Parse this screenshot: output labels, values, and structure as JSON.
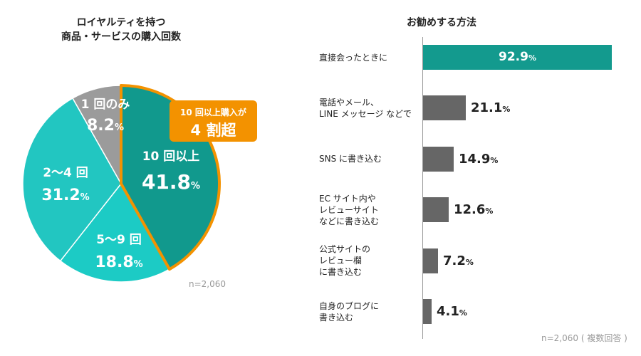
{
  "charts": {
    "pie": {
      "title_line1": "ロイヤルティを持つ",
      "title_line2": "商品・サービスの購入回数",
      "note": "n=2,060",
      "callout_line1": "10 回以上購入が",
      "callout_line2": "4 割超",
      "unit": "%",
      "colors": {
        "slice_1": "#9b9b9b",
        "slice_2_4": "#22c6c1",
        "slice_5_9": "#1ccbc5",
        "slice_10": "#11998d",
        "highlight": "#f39200"
      }
    },
    "bar": {
      "title": "お勧めする方法",
      "note": "n=2,060 ( 複数回答 )",
      "unit": "%",
      "colors": {
        "top": "#139a8e",
        "other": "#666666"
      }
    }
  },
  "chart_data": [
    {
      "type": "pie",
      "title": "ロイヤルティを持つ 商品・サービスの購入回数",
      "categories": [
        "10 回以上",
        "5〜9 回",
        "2〜4 回",
        "1 回のみ"
      ],
      "values": [
        41.8,
        18.8,
        31.2,
        8.2
      ],
      "value_labels": [
        "41.8",
        "18.8",
        "31.2",
        "8.2"
      ],
      "unit": "%"
    },
    {
      "type": "bar",
      "orientation": "horizontal",
      "title": "お勧めする方法",
      "categories": [
        [
          "直接会ったときに"
        ],
        [
          "電話やメール、",
          "LINE メッセージ などで"
        ],
        [
          "SNS に書き込む"
        ],
        [
          "EC サイト内や",
          "レビューサイト",
          "などに書き込む"
        ],
        [
          "公式サイトの",
          "レビュー欄",
          "に書き込む"
        ],
        [
          "自身のブログに",
          "書き込む"
        ]
      ],
      "values": [
        92.9,
        21.1,
        14.9,
        12.6,
        7.2,
        4.1
      ],
      "value_labels": [
        "92.9",
        "21.1",
        "14.9",
        "12.6",
        "7.2",
        "4.1"
      ],
      "unit": "%",
      "xlim": [
        0,
        100
      ]
    }
  ]
}
